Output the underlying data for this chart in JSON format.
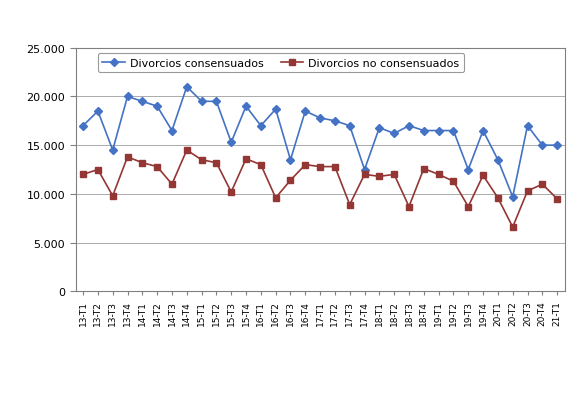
{
  "categories": [
    "13-T1",
    "13-T2",
    "13-T3",
    "13-T4",
    "14-T1",
    "14-T2",
    "14-T3",
    "14-T4",
    "15-T1",
    "15-T2",
    "15-T3",
    "15-T4",
    "16-T1",
    "16-T2",
    "16-T3",
    "16-T4",
    "17-T1",
    "17-T2",
    "17-T3",
    "17-T4",
    "18-T1",
    "18-T2",
    "18-T3",
    "18-T4",
    "19-T1",
    "19-T2",
    "19-T3",
    "19-T4",
    "20-T1",
    "20-T2",
    "20-T3",
    "20-T4",
    "21-T1"
  ],
  "consensuados": [
    17000,
    18500,
    14500,
    20000,
    19500,
    19000,
    16500,
    21000,
    19500,
    19500,
    15300,
    19000,
    17000,
    18700,
    13500,
    18500,
    17800,
    17500,
    17000,
    12500,
    16800,
    16200,
    17000,
    16500,
    16500,
    16500,
    12500,
    16500,
    13500,
    9700,
    17000,
    15000,
    15000
  ],
  "no_consensuados": [
    12000,
    12500,
    9800,
    13800,
    13200,
    12800,
    11000,
    14500,
    13500,
    13200,
    10200,
    13600,
    13000,
    9600,
    11400,
    13000,
    12800,
    12800,
    8900,
    12000,
    11800,
    12000,
    8700,
    12600,
    12000,
    11300,
    8700,
    11900,
    9600,
    6600,
    10300,
    11000,
    9500
  ],
  "line1_color": "#4472C4",
  "line2_color": "#943634",
  "marker1": "D",
  "marker2": "s",
  "legend1": "Divorcios consensuados",
  "legend2": "Divorcios no consensuados",
  "ylim": [
    0,
    25000
  ],
  "yticks": [
    0,
    5000,
    10000,
    15000,
    20000,
    25000
  ],
  "ytick_labels": [
    "0",
    "5.000",
    "10.000",
    "15.000",
    "20.000",
    "25.000"
  ],
  "bg_color": "#FFFFFF",
  "grid_color": "#AAAAAA",
  "border_color": "#808080"
}
